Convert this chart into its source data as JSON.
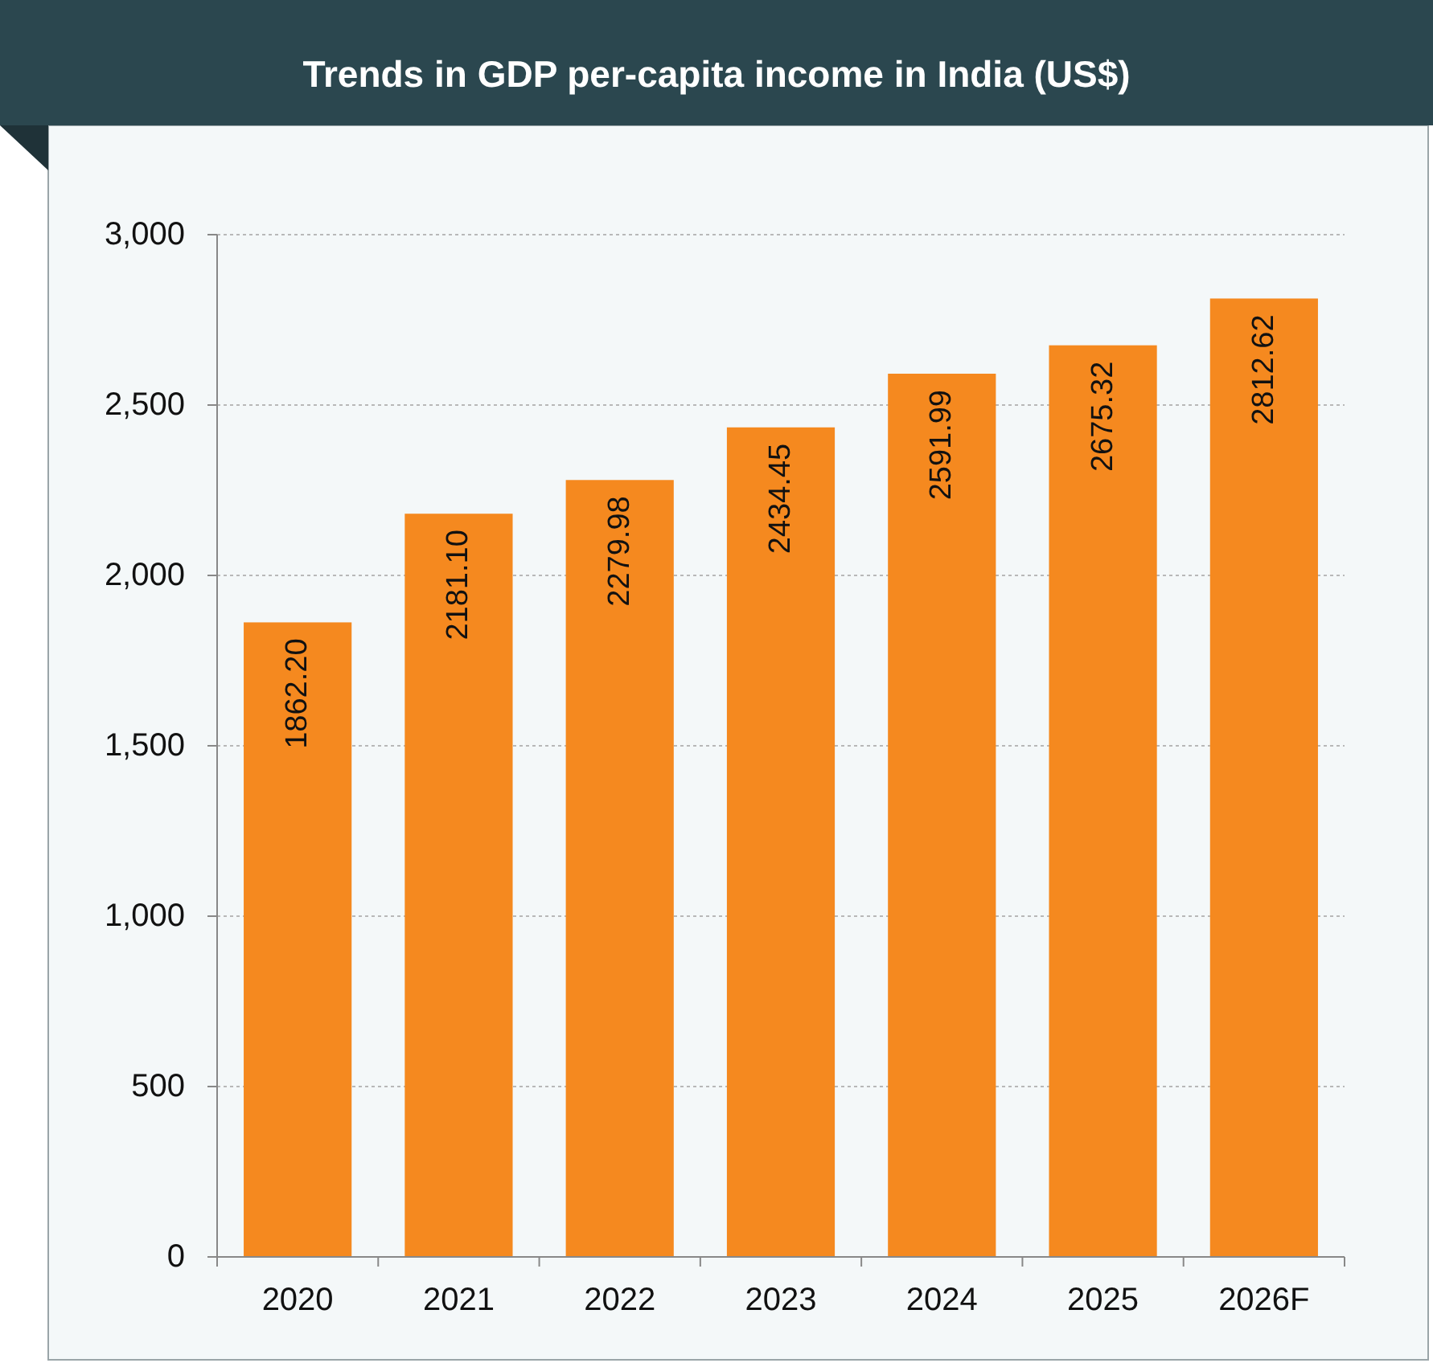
{
  "chart_data": {
    "type": "bar",
    "title": "Trends in GDP per-capita income in India (US$)",
    "categories": [
      "2020",
      "2021",
      "2022",
      "2023",
      "2024",
      "2025",
      "2026F"
    ],
    "values": [
      1862.2,
      2181.1,
      2279.98,
      2434.45,
      2591.99,
      2675.32,
      2812.62
    ],
    "value_labels": [
      "1862.20",
      "2181.10",
      "2279.98",
      "2434.45",
      "2591.99",
      "2675.32",
      "2812.62"
    ],
    "color": "#f5891f",
    "ylim": [
      0,
      3000
    ],
    "yticks": [
      0,
      500,
      {
        "value": 1000,
        "label": "1,000"
      },
      {
        "value": 1500,
        "label": "1,500"
      },
      {
        "value": 2000,
        "label": "2,000"
      },
      {
        "value": 2500,
        "label": "2,500"
      },
      {
        "value": 3000,
        "label": "3,000"
      }
    ],
    "grid": "y"
  }
}
